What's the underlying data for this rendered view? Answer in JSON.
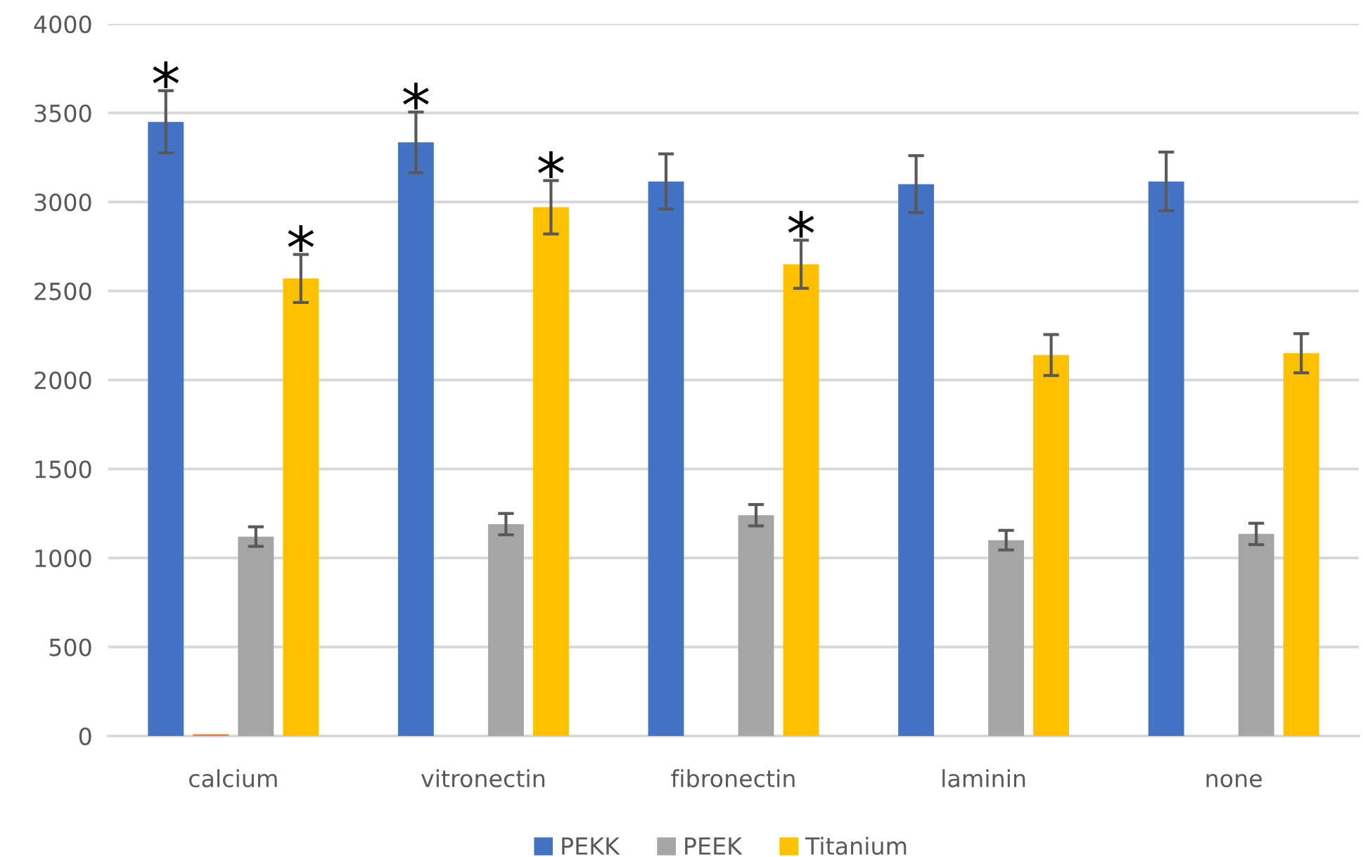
{
  "chart_data": {
    "type": "bar",
    "categories": [
      "calcium",
      "vitronectin",
      "fibronectin",
      "laminin",
      "none"
    ],
    "series": [
      {
        "name": "PEKK",
        "color": "#4472c4",
        "values": [
          3450,
          3335,
          3115,
          3100,
          3115
        ],
        "errors": [
          175,
          170,
          155,
          160,
          165
        ]
      },
      {
        "color": "#ed7d31",
        "values": [
          10,
          null,
          null,
          null,
          null
        ]
      },
      {
        "name": "PEEK",
        "color": "#a5a5a5",
        "values": [
          1120,
          1190,
          1240,
          1100,
          1135
        ],
        "errors": [
          55,
          60,
          60,
          55,
          60
        ]
      },
      {
        "name": "Titanium",
        "color": "#ffc000",
        "values": [
          2570,
          2970,
          2650,
          2140,
          2150
        ],
        "errors": [
          135,
          150,
          135,
          115,
          110
        ]
      }
    ],
    "ylim": [
      0,
      4000
    ],
    "yticks": [
      0,
      500,
      1000,
      1500,
      2000,
      2500,
      3000,
      3500,
      4000
    ],
    "grid": "y",
    "legend": "bottom",
    "annotations": [
      "*",
      "*",
      "*",
      "*",
      "*"
    ]
  }
}
